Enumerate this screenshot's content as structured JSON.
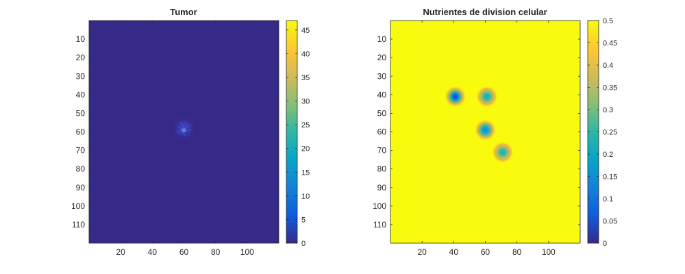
{
  "chart_data": [
    {
      "type": "heatmap",
      "title": "Tumor",
      "xlabel": "",
      "ylabel": "",
      "grid": false,
      "colormap": "parula",
      "xlim": [
        0,
        120
      ],
      "ylim": [
        0,
        120
      ],
      "y_direction": "reversed",
      "xticks": [
        20,
        40,
        60,
        80,
        100
      ],
      "yticks": [
        10,
        20,
        30,
        40,
        50,
        60,
        70,
        80,
        90,
        100,
        110
      ],
      "color_range": [
        0,
        47
      ],
      "colorbar_ticks": [
        0,
        5,
        10,
        15,
        20,
        25,
        30,
        35,
        40,
        45
      ],
      "background_value": 0,
      "features": [
        {
          "kind": "peak",
          "x": 60,
          "y": 59,
          "value": 47
        },
        {
          "kind": "diffuse-cluster",
          "x": 60,
          "y": 58,
          "radius": 8,
          "value": 3
        }
      ]
    },
    {
      "type": "heatmap",
      "title": "Nutrientes de division celular",
      "xlabel": "",
      "ylabel": "",
      "grid": false,
      "colormap": "parula",
      "xlim": [
        0,
        120
      ],
      "ylim": [
        0,
        120
      ],
      "y_direction": "reversed",
      "xticks": [
        20,
        40,
        60,
        80,
        100
      ],
      "yticks": [
        10,
        20,
        30,
        40,
        50,
        60,
        70,
        80,
        90,
        100,
        110
      ],
      "color_range": [
        0,
        0.5
      ],
      "colorbar_ticks": [
        0,
        0.05,
        0.1,
        0.15,
        0.2,
        0.25,
        0.3,
        0.35,
        0.4,
        0.45,
        0.5
      ],
      "background_value": 0.5,
      "features": [
        {
          "kind": "depletion",
          "x": 41,
          "y": 41,
          "min": 0.08
        },
        {
          "kind": "depletion",
          "x": 61,
          "y": 41,
          "min": 0.24
        },
        {
          "kind": "depletion",
          "x": 60,
          "y": 59,
          "min": 0.17
        },
        {
          "kind": "depletion",
          "x": 71,
          "y": 71,
          "min": 0.25
        }
      ]
    }
  ]
}
